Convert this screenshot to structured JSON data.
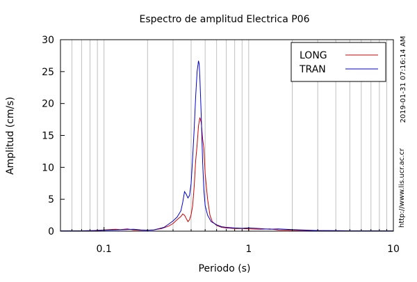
{
  "chart_data": {
    "type": "line",
    "title": "Espectro de amplitud Electrica P06",
    "xlabel": "Periodo (s)",
    "ylabel": "Amplitud (cm/s)",
    "xscale": "log",
    "xlim": [
      0.05,
      10
    ],
    "ylim": [
      0,
      30
    ],
    "x_ticks": [
      0.1,
      1,
      10
    ],
    "x_tick_labels": [
      "0.1",
      "1",
      "10"
    ],
    "y_ticks": [
      0,
      5,
      10,
      15,
      20,
      25,
      30
    ],
    "y_tick_labels": [
      "0",
      "5",
      "10",
      "15",
      "20",
      "25",
      "30"
    ],
    "grid": "vertical",
    "legend_position": "top-right",
    "side_texts": {
      "timestamp": "2019-01-31 07:16:14 AM",
      "url": "http://www.lis.ucr.ac.cr"
    },
    "series": [
      {
        "name": "LONG",
        "color": "#cc0000",
        "points": [
          [
            0.05,
            0.05
          ],
          [
            0.07,
            0.05
          ],
          [
            0.085,
            0.1
          ],
          [
            0.1,
            0.2
          ],
          [
            0.11,
            0.25
          ],
          [
            0.12,
            0.3
          ],
          [
            0.13,
            0.25
          ],
          [
            0.145,
            0.35
          ],
          [
            0.16,
            0.2
          ],
          [
            0.18,
            0.15
          ],
          [
            0.2,
            0.15
          ],
          [
            0.22,
            0.2
          ],
          [
            0.25,
            0.4
          ],
          [
            0.28,
            0.8
          ],
          [
            0.3,
            1.2
          ],
          [
            0.32,
            1.8
          ],
          [
            0.34,
            2.3
          ],
          [
            0.35,
            2.7
          ],
          [
            0.36,
            2.5
          ],
          [
            0.37,
            2.0
          ],
          [
            0.38,
            1.5
          ],
          [
            0.39,
            1.8
          ],
          [
            0.4,
            2.6
          ],
          [
            0.41,
            4.0
          ],
          [
            0.42,
            7.0
          ],
          [
            0.43,
            11.0
          ],
          [
            0.44,
            13.5
          ],
          [
            0.45,
            16.5
          ],
          [
            0.46,
            17.8
          ],
          [
            0.47,
            17.0
          ],
          [
            0.48,
            14.5
          ],
          [
            0.49,
            13.0
          ],
          [
            0.5,
            9.0
          ],
          [
            0.52,
            5.0
          ],
          [
            0.54,
            2.5
          ],
          [
            0.56,
            1.5
          ],
          [
            0.6,
            0.9
          ],
          [
            0.65,
            0.6
          ],
          [
            0.7,
            0.5
          ],
          [
            0.8,
            0.4
          ],
          [
            0.9,
            0.4
          ],
          [
            1.0,
            0.35
          ],
          [
            1.2,
            0.3
          ],
          [
            1.4,
            0.35
          ],
          [
            1.6,
            0.2
          ],
          [
            2.0,
            0.15
          ],
          [
            3.0,
            0.1
          ],
          [
            5.0,
            0.05
          ],
          [
            10.0,
            0.05
          ]
        ]
      },
      {
        "name": "TRAN",
        "color": "#0000cc",
        "points": [
          [
            0.05,
            0.05
          ],
          [
            0.07,
            0.05
          ],
          [
            0.09,
            0.1
          ],
          [
            0.1,
            0.15
          ],
          [
            0.12,
            0.2
          ],
          [
            0.14,
            0.25
          ],
          [
            0.16,
            0.3
          ],
          [
            0.18,
            0.2
          ],
          [
            0.2,
            0.15
          ],
          [
            0.22,
            0.2
          ],
          [
            0.24,
            0.4
          ],
          [
            0.26,
            0.6
          ],
          [
            0.28,
            1.1
          ],
          [
            0.3,
            1.6
          ],
          [
            0.32,
            2.2
          ],
          [
            0.34,
            3.2
          ],
          [
            0.35,
            4.5
          ],
          [
            0.36,
            6.2
          ],
          [
            0.37,
            5.8
          ],
          [
            0.38,
            5.2
          ],
          [
            0.39,
            5.6
          ],
          [
            0.4,
            7.5
          ],
          [
            0.41,
            11.5
          ],
          [
            0.42,
            16.0
          ],
          [
            0.43,
            21.0
          ],
          [
            0.44,
            25.0
          ],
          [
            0.45,
            26.7
          ],
          [
            0.455,
            26.2
          ],
          [
            0.46,
            24.0
          ],
          [
            0.47,
            18.0
          ],
          [
            0.48,
            11.0
          ],
          [
            0.49,
            6.5
          ],
          [
            0.5,
            4.0
          ],
          [
            0.52,
            2.5
          ],
          [
            0.55,
            1.5
          ],
          [
            0.6,
            1.0
          ],
          [
            0.65,
            0.7
          ],
          [
            0.7,
            0.6
          ],
          [
            0.8,
            0.5
          ],
          [
            0.9,
            0.45
          ],
          [
            1.0,
            0.5
          ],
          [
            1.2,
            0.4
          ],
          [
            1.4,
            0.3
          ],
          [
            1.6,
            0.35
          ],
          [
            2.0,
            0.25
          ],
          [
            3.0,
            0.1
          ],
          [
            5.0,
            0.05
          ],
          [
            10.0,
            0.05
          ]
        ]
      }
    ]
  }
}
